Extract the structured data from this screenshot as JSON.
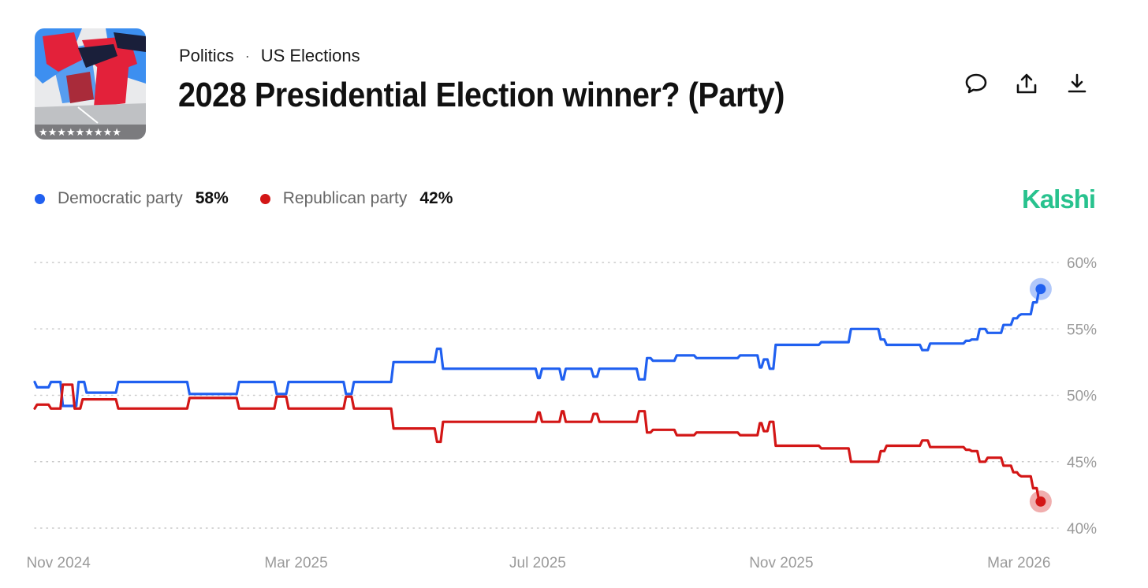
{
  "header": {
    "breadcrumb": [
      "Politics",
      "US Elections"
    ],
    "breadcrumb_separator": "·",
    "title": "2028 Presidential Election winner? (Party)"
  },
  "actions": [
    {
      "icon": "comment-icon"
    },
    {
      "icon": "share-icon"
    },
    {
      "icon": "download-icon"
    }
  ],
  "brand": {
    "name": "Kalshi",
    "color": "#28c28e"
  },
  "legend": [
    {
      "label": "Democratic party",
      "value": "58%",
      "color": "#2060f0"
    },
    {
      "label": "Republican party",
      "value": "42%",
      "color": "#d31616"
    }
  ],
  "thumbnail": {
    "alt_icon": "ballot-hands-illustration"
  },
  "chart_data": {
    "type": "line",
    "title": "2028 Presidential Election winner? (Party)",
    "xlabel": "",
    "ylabel": "",
    "ylim": [
      40,
      60
    ],
    "xlim": [
      "2024-10-20",
      "2026-03-20"
    ],
    "grid": true,
    "y_axis_side": "right",
    "yticks": [
      {
        "value": 60,
        "label": "60%"
      },
      {
        "value": 55,
        "label": "55%"
      },
      {
        "value": 50,
        "label": "50%"
      },
      {
        "value": 45,
        "label": "45%"
      },
      {
        "value": 40,
        "label": "40%"
      }
    ],
    "xticks": [
      {
        "date": "2024-11-01",
        "label": "Nov 2024"
      },
      {
        "date": "2025-03-01",
        "label": "Mar 2025"
      },
      {
        "date": "2025-07-01",
        "label": "Jul 2025"
      },
      {
        "date": "2025-11-01",
        "label": "Nov 2025"
      },
      {
        "date": "2026-03-01",
        "label": "Mar 2026"
      }
    ],
    "series": [
      {
        "name": "Democratic party",
        "color": "#2060f0",
        "points": [
          [
            "2024-10-20",
            51
          ],
          [
            "2024-10-27",
            50.6
          ],
          [
            "2024-11-02",
            51
          ],
          [
            "2024-11-10",
            49.2
          ],
          [
            "2024-11-14",
            51
          ],
          [
            "2024-11-30",
            50.2
          ],
          [
            "2024-12-05",
            51
          ],
          [
            "2025-01-05",
            51
          ],
          [
            "2025-01-10",
            50.1
          ],
          [
            "2025-01-30",
            50.1
          ],
          [
            "2025-02-05",
            51
          ],
          [
            "2025-02-18",
            51
          ],
          [
            "2025-02-24",
            50.1
          ],
          [
            "2025-03-02",
            51
          ],
          [
            "2025-03-25",
            51
          ],
          [
            "2025-03-29",
            50.1
          ],
          [
            "2025-04-02",
            51
          ],
          [
            "2025-04-18",
            51
          ],
          [
            "2025-04-22",
            52.5
          ],
          [
            "2025-05-10",
            52.5
          ],
          [
            "2025-05-13",
            53.5
          ],
          [
            "2025-05-16",
            52
          ],
          [
            "2025-06-30",
            52
          ],
          [
            "2025-07-02",
            51.3
          ],
          [
            "2025-07-05",
            52
          ],
          [
            "2025-07-12",
            52
          ],
          [
            "2025-07-14",
            51.2
          ],
          [
            "2025-07-17",
            52
          ],
          [
            "2025-07-28",
            52
          ],
          [
            "2025-07-31",
            51.4
          ],
          [
            "2025-08-03",
            52
          ],
          [
            "2025-08-20",
            52
          ],
          [
            "2025-08-24",
            51.2
          ],
          [
            "2025-08-27",
            52.8
          ],
          [
            "2025-09-08",
            52.6
          ],
          [
            "2025-09-18",
            53
          ],
          [
            "2025-10-10",
            52.8
          ],
          [
            "2025-10-20",
            53
          ],
          [
            "2025-10-22",
            52.1
          ],
          [
            "2025-10-25",
            52.7
          ],
          [
            "2025-10-28",
            52
          ],
          [
            "2025-11-01",
            53.8
          ],
          [
            "2025-11-20",
            53.8
          ],
          [
            "2025-12-05",
            54
          ],
          [
            "2025-12-10",
            55
          ],
          [
            "2025-12-20",
            55
          ],
          [
            "2025-12-23",
            54.2
          ],
          [
            "2025-12-26",
            53.8
          ],
          [
            "2026-01-10",
            53.8
          ],
          [
            "2026-01-14",
            53.4
          ],
          [
            "2026-01-17",
            53.9
          ],
          [
            "2026-02-01",
            53.9
          ],
          [
            "2026-02-04",
            54.1
          ],
          [
            "2026-02-08",
            54.2
          ],
          [
            "2026-02-12",
            55
          ],
          [
            "2026-02-20",
            54.7
          ],
          [
            "2026-02-25",
            55.3
          ],
          [
            "2026-02-28",
            55.8
          ],
          [
            "2026-03-01",
            56
          ],
          [
            "2026-03-07",
            56.1
          ],
          [
            "2026-03-10",
            57
          ],
          [
            "2026-03-12",
            58
          ]
        ]
      },
      {
        "name": "Republican party",
        "color": "#d31616",
        "points": [
          [
            "2024-10-20",
            49
          ],
          [
            "2024-10-27",
            49.3
          ],
          [
            "2024-11-02",
            49
          ],
          [
            "2024-11-08",
            50.8
          ],
          [
            "2024-11-12",
            49
          ],
          [
            "2024-11-30",
            49.7
          ],
          [
            "2024-12-05",
            49
          ],
          [
            "2025-01-05",
            49
          ],
          [
            "2025-01-10",
            49.8
          ],
          [
            "2025-01-30",
            49.8
          ],
          [
            "2025-02-05",
            49
          ],
          [
            "2025-02-18",
            49
          ],
          [
            "2025-02-24",
            49.9
          ],
          [
            "2025-03-02",
            49
          ],
          [
            "2025-03-25",
            49
          ],
          [
            "2025-03-29",
            49.9
          ],
          [
            "2025-04-02",
            49
          ],
          [
            "2025-04-18",
            49
          ],
          [
            "2025-04-22",
            47.5
          ],
          [
            "2025-05-10",
            47.5
          ],
          [
            "2025-05-13",
            46.5
          ],
          [
            "2025-05-16",
            48
          ],
          [
            "2025-06-30",
            48
          ],
          [
            "2025-07-02",
            48.7
          ],
          [
            "2025-07-05",
            48
          ],
          [
            "2025-07-12",
            48
          ],
          [
            "2025-07-14",
            48.8
          ],
          [
            "2025-07-17",
            48
          ],
          [
            "2025-07-28",
            48
          ],
          [
            "2025-07-31",
            48.6
          ],
          [
            "2025-08-03",
            48
          ],
          [
            "2025-08-20",
            48
          ],
          [
            "2025-08-24",
            48.8
          ],
          [
            "2025-08-27",
            47.2
          ],
          [
            "2025-09-08",
            47.4
          ],
          [
            "2025-09-18",
            47
          ],
          [
            "2025-10-10",
            47.2
          ],
          [
            "2025-10-20",
            47
          ],
          [
            "2025-10-22",
            47.9
          ],
          [
            "2025-10-25",
            47.3
          ],
          [
            "2025-10-28",
            48
          ],
          [
            "2025-11-01",
            46.2
          ],
          [
            "2025-11-20",
            46.2
          ],
          [
            "2025-12-05",
            46
          ],
          [
            "2025-12-10",
            45
          ],
          [
            "2025-12-20",
            45
          ],
          [
            "2025-12-23",
            45.8
          ],
          [
            "2025-12-26",
            46.2
          ],
          [
            "2026-01-10",
            46.2
          ],
          [
            "2026-01-14",
            46.6
          ],
          [
            "2026-01-17",
            46.1
          ],
          [
            "2026-02-01",
            46.1
          ],
          [
            "2026-02-04",
            45.9
          ],
          [
            "2026-02-08",
            45.8
          ],
          [
            "2026-02-12",
            45
          ],
          [
            "2026-02-20",
            45.3
          ],
          [
            "2026-02-25",
            44.7
          ],
          [
            "2026-02-28",
            44.2
          ],
          [
            "2026-03-01",
            44
          ],
          [
            "2026-03-07",
            43.9
          ],
          [
            "2026-03-10",
            43
          ],
          [
            "2026-03-12",
            42
          ]
        ]
      }
    ]
  }
}
